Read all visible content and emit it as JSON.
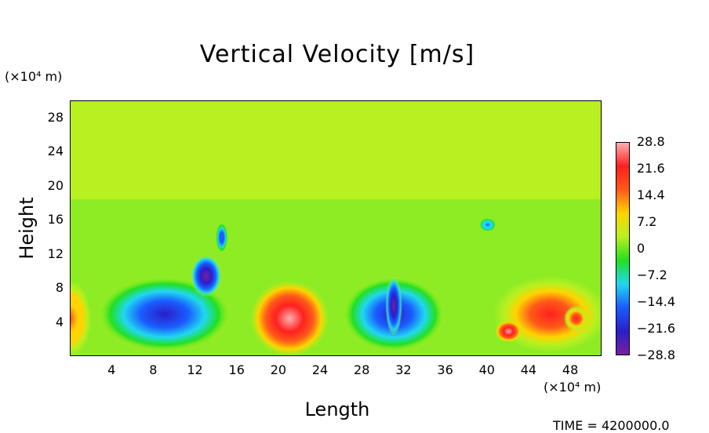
{
  "chart_data": {
    "type": "heatmap",
    "title": "Vertical Velocity [m/s]",
    "xlabel": "Length",
    "ylabel": "Height",
    "x_unit": "(×10⁴ m)",
    "y_unit": "(×10⁴ m)",
    "xlim": [
      0,
      51
    ],
    "ylim": [
      0,
      30
    ],
    "x_ticks": [
      4,
      8,
      12,
      16,
      20,
      24,
      28,
      32,
      36,
      40,
      44,
      48
    ],
    "y_ticks": [
      4,
      8,
      12,
      16,
      20,
      24,
      28
    ],
    "colorbar": {
      "ticks": [
        {
          "value": 28.8,
          "label": "28.8"
        },
        {
          "value": 21.6,
          "label": "21.6"
        },
        {
          "value": 14.4,
          "label": "14.4"
        },
        {
          "value": 7.2,
          "label": "7.2"
        },
        {
          "value": 0,
          "label": "0"
        },
        {
          "value": -7.2,
          "label": "−7.2"
        },
        {
          "value": -14.4,
          "label": "−14.4"
        },
        {
          "value": -21.6,
          "label": "−21.6"
        },
        {
          "value": -28.8,
          "label": "−28.8"
        }
      ],
      "min": -28.8,
      "max": 28.8,
      "stops": [
        "#7a1f9e",
        "#2a1fc8",
        "#1a5cff",
        "#20d8f0",
        "#22e022",
        "#b8f020",
        "#ffd400",
        "#ff5a1a",
        "#ff2020",
        "#ffb0b0"
      ]
    },
    "features": [
      {
        "name": "updraft-left-edge",
        "x": 0,
        "y": 4.5,
        "rx": 2.0,
        "ry": 4.5,
        "value": 14
      },
      {
        "name": "downdraft-core-1",
        "x": 9,
        "y": 5,
        "rx": 6.5,
        "ry": 4.5,
        "value": -24
      },
      {
        "name": "downdraft-plume-1",
        "x": 13,
        "y": 9.5,
        "rx": 1.5,
        "ry": 2.5,
        "value": -26
      },
      {
        "name": "downdraft-filament-1",
        "x": 14.5,
        "y": 14,
        "rx": 0.6,
        "ry": 1.8,
        "value": -18
      },
      {
        "name": "updraft-core-1",
        "x": 21,
        "y": 4.5,
        "rx": 3.8,
        "ry": 4.5,
        "value": 27
      },
      {
        "name": "downdraft-core-2",
        "x": 31,
        "y": 5,
        "rx": 5.0,
        "ry": 4.5,
        "value": -24
      },
      {
        "name": "downdraft-plume-2",
        "x": 31,
        "y": 6,
        "rx": 0.8,
        "ry": 3.5,
        "value": -28
      },
      {
        "name": "updraft-core-2",
        "x": 46,
        "y": 5,
        "rx": 5.5,
        "ry": 4.5,
        "value": 20
      },
      {
        "name": "updraft-cell-2a",
        "x": 42,
        "y": 3,
        "rx": 1.3,
        "ry": 1.3,
        "value": 27
      },
      {
        "name": "updraft-cell-2b",
        "x": 48.5,
        "y": 4.5,
        "rx": 1.2,
        "ry": 1.5,
        "value": 25
      },
      {
        "name": "downdraft-filament-2",
        "x": 40,
        "y": 15.5,
        "rx": 0.8,
        "ry": 0.8,
        "value": -14
      }
    ],
    "time_label": "TIME = 4200000.0"
  }
}
